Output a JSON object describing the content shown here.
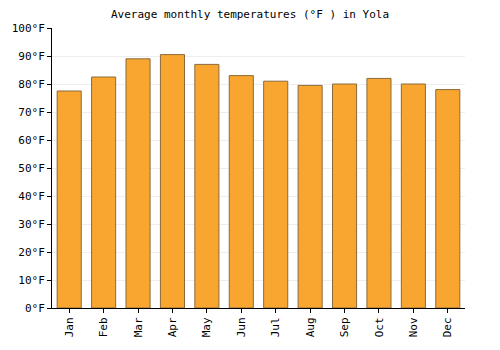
{
  "chart_data": {
    "type": "bar",
    "title": "Average monthly temperatures (°F ) in Yola",
    "categories": [
      "Jan",
      "Feb",
      "Mar",
      "Apr",
      "May",
      "Jun",
      "Jul",
      "Aug",
      "Sep",
      "Oct",
      "Nov",
      "Dec"
    ],
    "values": [
      77.5,
      82.5,
      89,
      90.5,
      87,
      83,
      81,
      79.5,
      80,
      82,
      80,
      78
    ],
    "color": "#f9a630",
    "ylim": [
      0,
      100
    ],
    "yticks": [
      {
        "value": 0,
        "label": "0°F"
      },
      {
        "value": 10,
        "label": "10°F"
      },
      {
        "value": 20,
        "label": "20°F"
      },
      {
        "value": 30,
        "label": "30°F"
      },
      {
        "value": 40,
        "label": "40°F"
      },
      {
        "value": 50,
        "label": "50°F"
      },
      {
        "value": 60,
        "label": "60°F"
      },
      {
        "value": 70,
        "label": "70°F"
      },
      {
        "value": 80,
        "label": "80°F"
      },
      {
        "value": 90,
        "label": "90°F"
      },
      {
        "value": 100,
        "label": "100°F"
      }
    ],
    "grid": true
  }
}
